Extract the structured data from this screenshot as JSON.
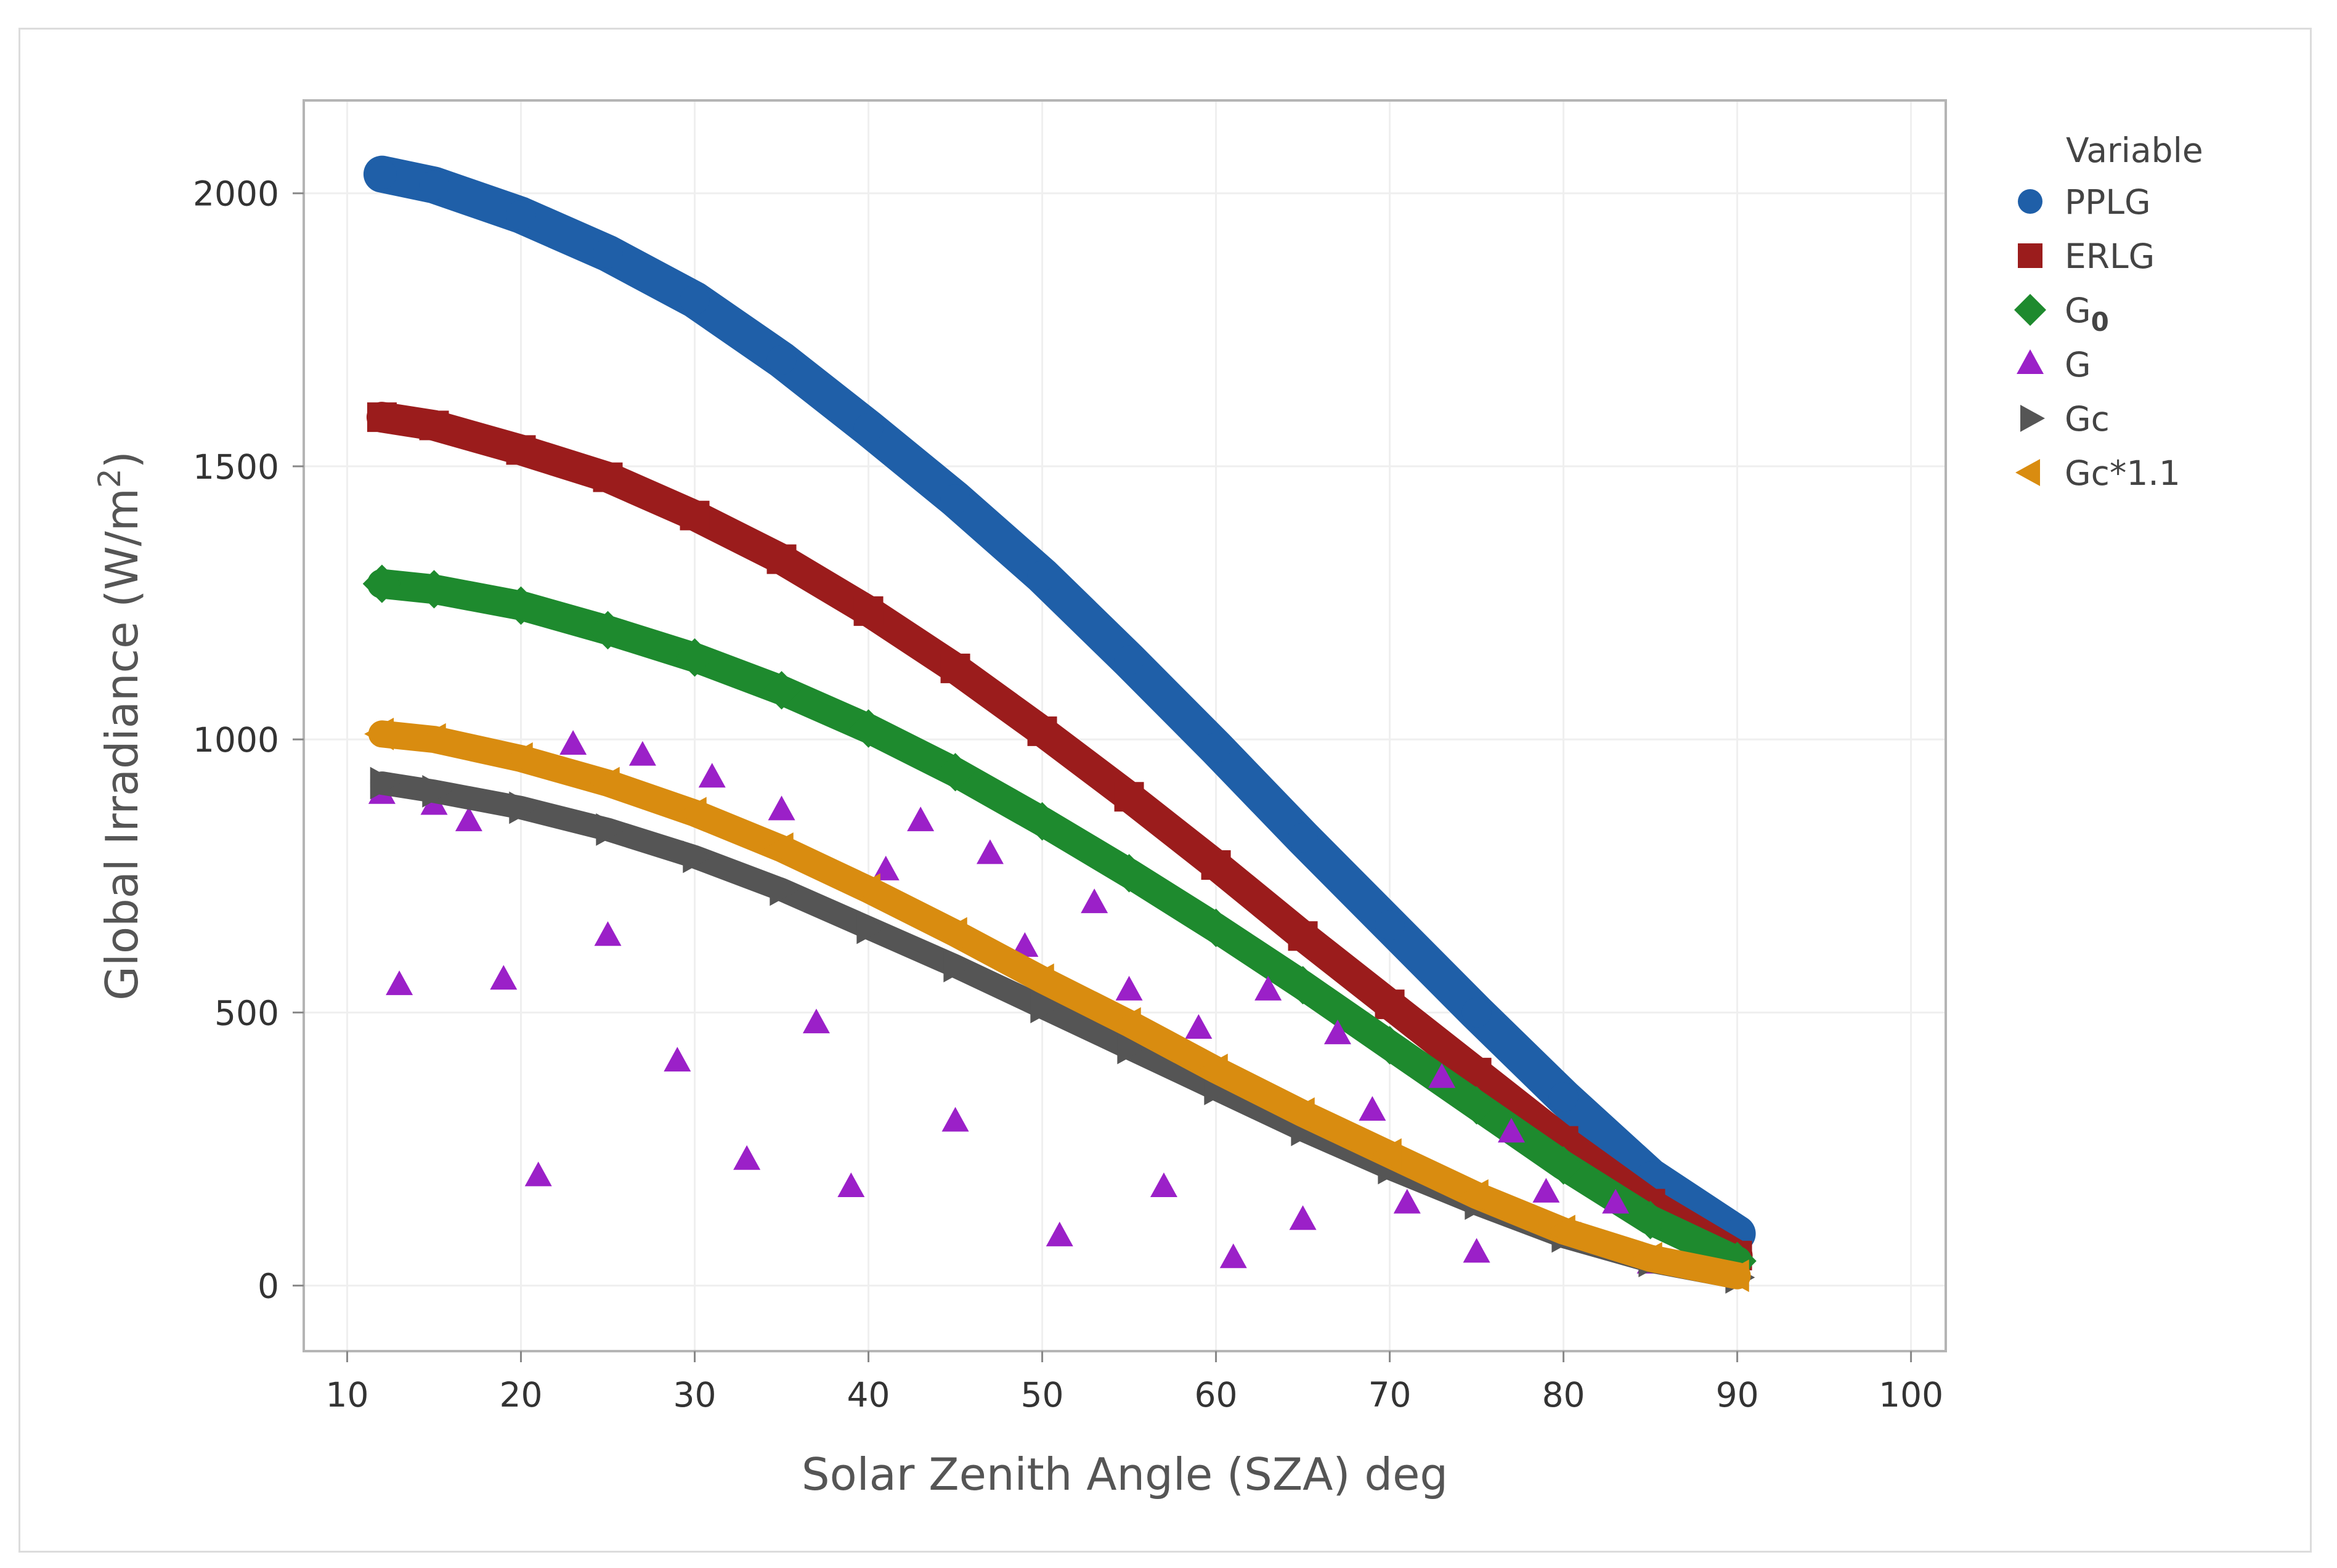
{
  "chart_data": {
    "type": "scatter",
    "xlabel": "Solar Zenith Angle (SZA) deg",
    "ylabel_prefix": "Global Irradiance (W/m",
    "ylabel_sup": "2",
    "ylabel_suffix": ")",
    "xlim": [
      7.5,
      102
    ],
    "ylim": [
      -120,
      2170
    ],
    "x_ticks": [
      10,
      20,
      30,
      40,
      50,
      60,
      70,
      80,
      90,
      100
    ],
    "x_tick_labels": [
      "10",
      "20",
      "30",
      "40",
      "50",
      "60",
      "70",
      "80",
      "90",
      "100"
    ],
    "y_ticks": [
      0,
      500,
      1000,
      1500,
      2000
    ],
    "y_tick_labels": [
      "0",
      "500",
      "1000",
      "1500",
      "2000"
    ],
    "grid": true,
    "legend_position": "right",
    "legend_title": "Variable",
    "series": [
      {
        "name": "PPLG",
        "label_main": "PPLG",
        "label_sub": "",
        "marker": "circle",
        "color": "#1f5fa8",
        "x": [
          12,
          15,
          20,
          25,
          30,
          35,
          40,
          45,
          50,
          55,
          60,
          65,
          70,
          75,
          80,
          85,
          90
        ],
        "y": [
          2035,
          2015,
          1960,
          1890,
          1805,
          1695,
          1570,
          1440,
          1300,
          1145,
          985,
          820,
          660,
          500,
          345,
          200,
          95
        ]
      },
      {
        "name": "ERLG",
        "label_main": "ERLG",
        "label_sub": "",
        "marker": "square",
        "color": "#9b1c1c",
        "x": [
          12,
          15,
          20,
          25,
          30,
          35,
          40,
          45,
          50,
          55,
          60,
          65,
          70,
          75,
          80,
          85,
          90
        ],
        "y": [
          1590,
          1575,
          1530,
          1480,
          1410,
          1330,
          1235,
          1130,
          1015,
          895,
          770,
          640,
          515,
          390,
          265,
          150,
          55
        ]
      },
      {
        "name": "G0",
        "label_main": "G",
        "label_sub": "0",
        "marker": "diamond",
        "color": "#1e8a2e",
        "x": [
          12,
          15,
          20,
          25,
          30,
          35,
          40,
          45,
          50,
          55,
          60,
          65,
          70,
          75,
          80,
          85,
          90
        ],
        "y": [
          1285,
          1275,
          1245,
          1200,
          1150,
          1090,
          1020,
          940,
          850,
          755,
          655,
          550,
          440,
          330,
          220,
          120,
          45
        ]
      },
      {
        "name": "G",
        "label_main": "G",
        "label_sub": "",
        "marker": "triangle-up",
        "color": "#9b20c8",
        "x": [
          12,
          13,
          15,
          17,
          19,
          21,
          23,
          25,
          27,
          29,
          31,
          33,
          35,
          37,
          39,
          41,
          43,
          45,
          47,
          49,
          51,
          53,
          55,
          57,
          59,
          61,
          63,
          65,
          67,
          69,
          71,
          73,
          75,
          77,
          79,
          81,
          83,
          85
        ],
        "y": [
          900,
          550,
          880,
          850,
          560,
          200,
          990,
          640,
          970,
          410,
          930,
          230,
          870,
          480,
          180,
          760,
          850,
          300,
          790,
          620,
          90,
          700,
          540,
          180,
          470,
          50,
          540,
          120,
          460,
          320,
          150,
          380,
          60,
          280,
          170,
          90,
          150,
          40
        ]
      },
      {
        "name": "Gc",
        "label_main": "Gc",
        "label_sub": "",
        "marker": "triangle-right",
        "color": "#555555",
        "x": [
          12,
          15,
          20,
          25,
          30,
          35,
          40,
          45,
          50,
          55,
          60,
          65,
          70,
          75,
          80,
          85,
          90
        ],
        "y": [
          920,
          905,
          875,
          835,
          785,
          725,
          655,
          585,
          510,
          435,
          360,
          285,
          215,
          150,
          90,
          45,
          15
        ]
      },
      {
        "name": "Gc*1.1",
        "label_main": "Gc*1.1",
        "label_sub": "",
        "marker": "triangle-left",
        "color": "#d98c10",
        "x": [
          12,
          15,
          20,
          25,
          30,
          35,
          40,
          45,
          50,
          55,
          60,
          65,
          70,
          75,
          80,
          85,
          90
        ],
        "y": [
          1010,
          1000,
          965,
          920,
          865,
          800,
          725,
          645,
          560,
          480,
          395,
          315,
          240,
          165,
          100,
          50,
          18
        ]
      }
    ]
  }
}
